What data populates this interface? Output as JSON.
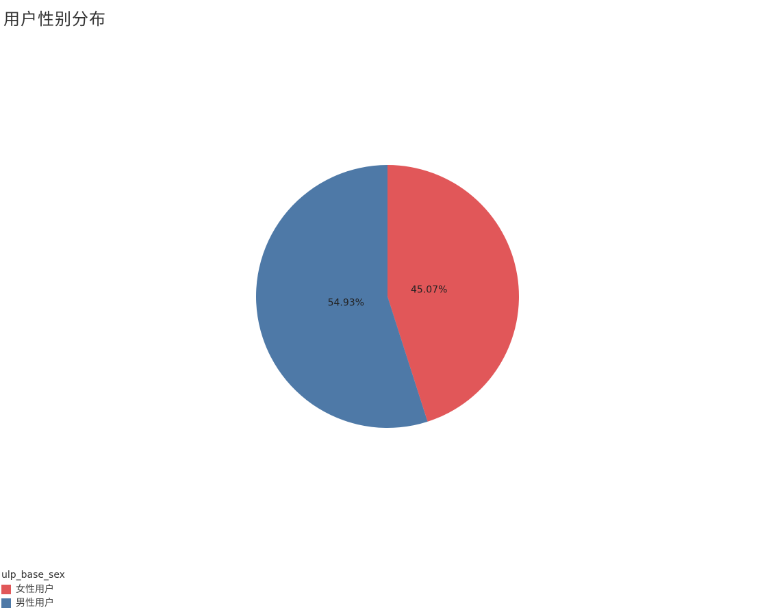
{
  "chart_data": {
    "type": "pie",
    "title": "用户性别分布",
    "legend_title": "ulp_base_sex",
    "legend_position": "bottom-left",
    "slices": [
      {
        "name": "女性用户",
        "value": 45.07,
        "label": "45.07%",
        "color": "#e15759"
      },
      {
        "name": "男性用户",
        "value": 54.93,
        "label": "54.93%",
        "color": "#4e79a7"
      }
    ]
  }
}
